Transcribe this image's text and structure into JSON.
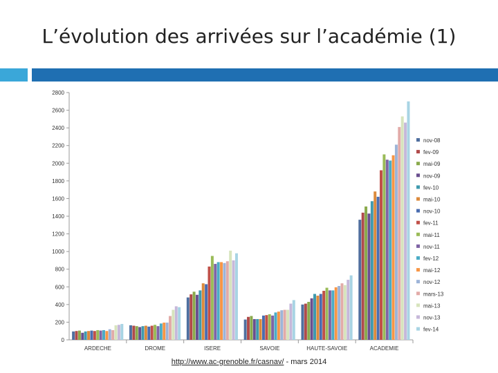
{
  "slide": {
    "title": "L’évolution des arrivées sur l’académie (1)",
    "footer_link": "http://www.ac-grenoble.fr/casnav/",
    "footer_suffix": " - mars 2014"
  },
  "colors": {
    "header_accent": "#3aa7d9",
    "header_bar": "#1f6fb2"
  },
  "chart_data": {
    "type": "bar",
    "title": "",
    "xlabel": "",
    "ylabel": "",
    "ylim": [
      0,
      2800
    ],
    "yticks": [
      0,
      200,
      400,
      600,
      800,
      1000,
      1200,
      1400,
      1600,
      1800,
      2000,
      2200,
      2400,
      2600,
      2800
    ],
    "grid": false,
    "legend_position": "right",
    "categories": [
      "ARDECHE",
      "DROME",
      "ISERE",
      "SAVOIE",
      "HAUTE-SAVOIE",
      "ACADEMIE"
    ],
    "series": [
      {
        "name": "nov-08",
        "color": "#4f6f9f",
        "values": [
          95,
          165,
          480,
          230,
          400,
          1360
        ]
      },
      {
        "name": "fev-09",
        "color": "#b04a4a",
        "values": [
          100,
          160,
          515,
          260,
          410,
          1440
        ]
      },
      {
        "name": "mai-09",
        "color": "#8aaa4c",
        "values": [
          105,
          155,
          545,
          270,
          430,
          1510
        ]
      },
      {
        "name": "nov-09",
        "color": "#6a4f8f",
        "values": [
          80,
          145,
          510,
          235,
          470,
          1430
        ]
      },
      {
        "name": "fev-10",
        "color": "#3f9aae",
        "values": [
          95,
          155,
          560,
          235,
          520,
          1570
        ]
      },
      {
        "name": "mai-10",
        "color": "#dc8a3c",
        "values": [
          100,
          160,
          640,
          235,
          500,
          1680
        ]
      },
      {
        "name": "nov-10",
        "color": "#4a6db0",
        "values": [
          105,
          150,
          630,
          275,
          520,
          1620
        ]
      },
      {
        "name": "fev-11",
        "color": "#c05048",
        "values": [
          100,
          160,
          830,
          280,
          555,
          1920
        ]
      },
      {
        "name": "mai-11",
        "color": "#9abb58",
        "values": [
          110,
          170,
          950,
          290,
          590,
          2100
        ]
      },
      {
        "name": "nov-11",
        "color": "#7f64a5",
        "values": [
          105,
          155,
          860,
          275,
          560,
          2040
        ]
      },
      {
        "name": "fev-12",
        "color": "#4bacc6",
        "values": [
          110,
          185,
          880,
          310,
          560,
          2030
        ]
      },
      {
        "name": "mai-12",
        "color": "#f79646",
        "values": [
          100,
          195,
          880,
          320,
          595,
          2090
        ]
      },
      {
        "name": "nov-12",
        "color": "#9db4d8",
        "values": [
          120,
          195,
          870,
          335,
          610,
          2210
        ]
      },
      {
        "name": "mars-13",
        "color": "#e2aba8",
        "values": [
          110,
          270,
          890,
          340,
          640,
          2410
        ]
      },
      {
        "name": "mai-13",
        "color": "#d7e4bd",
        "values": [
          165,
          340,
          1010,
          340,
          620,
          2530
        ]
      },
      {
        "name": "nov-13",
        "color": "#c6b8da",
        "values": [
          170,
          380,
          900,
          410,
          680,
          2460
        ]
      },
      {
        "name": "fev-14",
        "color": "#a8d4e4",
        "values": [
          180,
          370,
          980,
          450,
          730,
          2700
        ]
      }
    ]
  }
}
